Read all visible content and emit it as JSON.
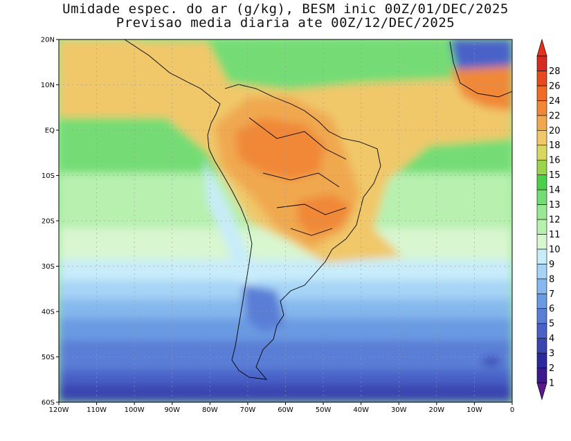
{
  "title_line1": "Umidade espec. do ar (g/kg), BESM inic 00Z/01/DEC/2025",
  "title_line2": "Previsao media diaria ate 00Z/12/DEC/2025",
  "map": {
    "lat_labels": [
      "20N",
      "10N",
      "EQ",
      "10S",
      "20S",
      "30S",
      "40S",
      "50S",
      "60S"
    ],
    "lon_labels": [
      "120W",
      "110W",
      "100W",
      "90W",
      "80W",
      "70W",
      "60W",
      "50W",
      "40W",
      "30W",
      "20W",
      "10W",
      "0"
    ],
    "lat_values": [
      20,
      10,
      0,
      -10,
      -20,
      -30,
      -40,
      -50,
      -60
    ],
    "lon_values": [
      -120,
      -110,
      -100,
      -90,
      -80,
      -70,
      -60,
      -50,
      -40,
      -30,
      -20,
      -10,
      0
    ],
    "grid": true
  },
  "colorbar": {
    "levels": [
      "1",
      "2",
      "3",
      "4",
      "5",
      "6",
      "7",
      "8",
      "9",
      "10",
      "11",
      "12",
      "13",
      "14",
      "15",
      "16",
      "18",
      "20",
      "22",
      "24",
      "26",
      "28"
    ],
    "colors": [
      "#3d1a8c",
      "#2a2a9e",
      "#3a45b0",
      "#4a62c8",
      "#5a7ed6",
      "#6a9ae2",
      "#85b8ee",
      "#a6d4f6",
      "#c8ecfa",
      "#d8f6d0",
      "#b8f0b0",
      "#98e894",
      "#74dc74",
      "#4cd04c",
      "#9ad44a",
      "#d8d860",
      "#f0c86a",
      "#f0a850",
      "#f08838",
      "#f06a28",
      "#e84a20",
      "#d82a20"
    ],
    "arrow_top": "#e83020",
    "arrow_bottom": "#5a1a8a"
  }
}
